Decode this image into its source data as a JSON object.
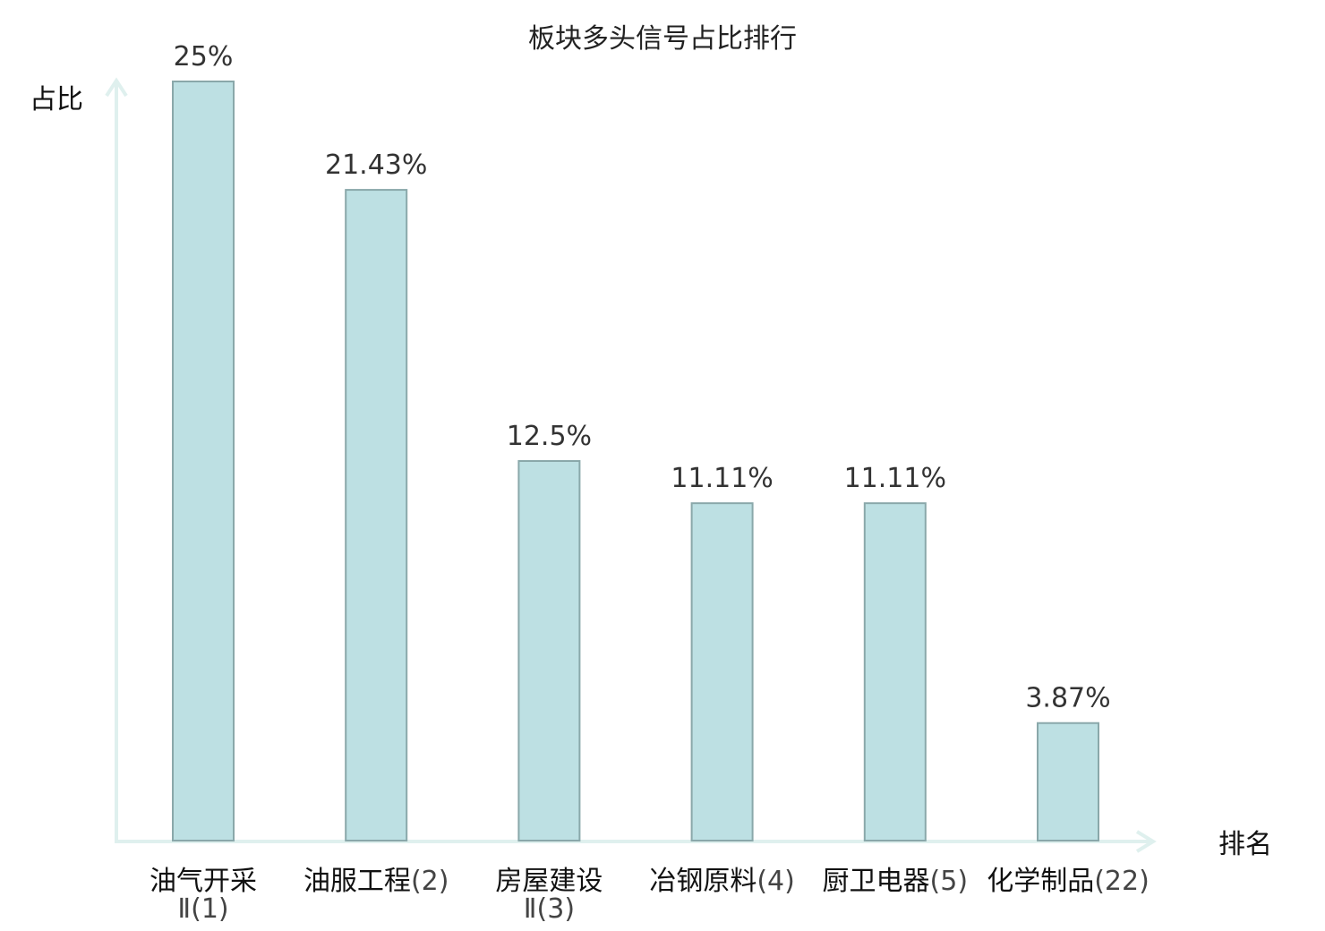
{
  "chart_data": {
    "type": "bar",
    "title": "板块多头信号占比排行",
    "ylabel": "占比",
    "xlabel": "排名",
    "ylim": [
      0,
      25
    ],
    "grid": false,
    "legend": "none",
    "categories": [
      {
        "name": "油气开采",
        "rank": "Ⅱ(1)",
        "wrap": true,
        "highlight": false
      },
      {
        "name": "油服工程",
        "rank": "(2)",
        "wrap": false,
        "highlight": false
      },
      {
        "name": "房屋建设",
        "rank": "Ⅱ(3)",
        "wrap": true,
        "highlight": false
      },
      {
        "name": "冶钢原料",
        "rank": "(4)",
        "wrap": false,
        "highlight": false
      },
      {
        "name": "厨卫电器",
        "rank": "(5)",
        "wrap": false,
        "highlight": false
      },
      {
        "name": "化学制品",
        "rank": "(22)",
        "wrap": false,
        "highlight": true
      }
    ],
    "values": [
      25,
      21.43,
      12.5,
      11.11,
      11.11,
      3.87
    ],
    "value_labels": [
      "25%",
      "21.43%",
      "12.5%",
      "11.11%",
      "11.11%",
      "3.87%"
    ],
    "colors": {
      "bar_fill": "#bde0e3",
      "bar_stroke": "#8aa8aa",
      "axis": "#dff0ee",
      "highlight_text": "#e0201b"
    }
  }
}
